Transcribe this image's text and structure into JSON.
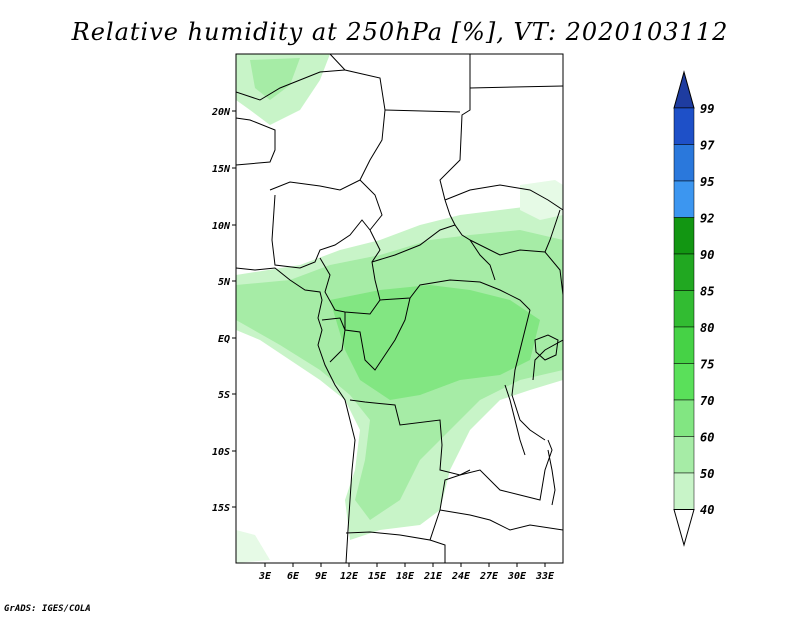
{
  "title": "Relative humidity at 250hPa [%], VT: 2020103112",
  "credit": "GrADS: IGES/COLA",
  "map": {
    "lon_range": [
      0,
      35
    ],
    "lat_range": [
      -20,
      25
    ],
    "lon_ticks": [
      "3E",
      "6E",
      "9E",
      "12E",
      "15E",
      "18E",
      "21E",
      "24E",
      "27E",
      "30E",
      "33E"
    ],
    "lat_ticks": [
      "20N",
      "15N",
      "10N",
      "5N",
      "EQ",
      "5S",
      "10S",
      "15S"
    ],
    "field": "relative humidity",
    "level": "250hPa",
    "unit": "%"
  },
  "colorbar": {
    "levels": [
      "99",
      "97",
      "95",
      "92",
      "90",
      "85",
      "80",
      "75",
      "70",
      "60",
      "50",
      "40"
    ],
    "colors": [
      "#1e50c8",
      "#2a78dc",
      "#3c96f0",
      "#129612",
      "#21a821",
      "#32bc32",
      "#46d246",
      "#5ae05a",
      "#82e682",
      "#a6eca6",
      "#c8f4c8",
      "#e6fae6"
    ],
    "top_arrow_color": "#1e3ca0",
    "bottom_arrow_color": "#ffffff"
  }
}
